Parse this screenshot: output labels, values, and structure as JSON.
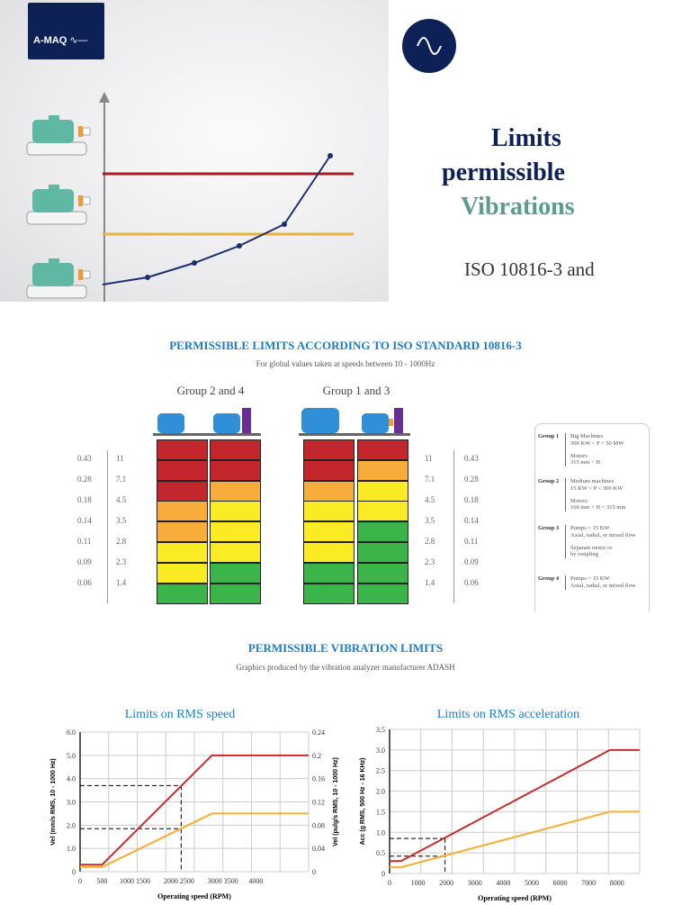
{
  "brand": {
    "logo_text": "A-MAQ",
    "icon": "sine-wave-icon",
    "navy": "#0e2157"
  },
  "title": {
    "line1": "Limits",
    "line2": "permissible",
    "line3": "Vibrations",
    "line4": "ISO 10816-3 and"
  },
  "iso_section": {
    "title": "PERMISSIBLE LIMITS ACCORDING TO ISO STANDARD 10816-3",
    "subtitle": "For global values taken at speeds between 10 - 1000Hz",
    "group_a": "Group 2 and 4",
    "group_b": "Group 1 and 3",
    "scale_ins": [
      "0.43",
      "0.28",
      "0.18",
      "0.14",
      "0.11",
      "0.09",
      "0.06"
    ],
    "scale_mm": [
      "11",
      "7.1",
      "4.5",
      "3.5",
      "2.8",
      "2.3",
      "1.4"
    ],
    "colors": {
      "R": "#c4262e",
      "O": "#f8ac3c",
      "Y": "#fbeb24",
      "G": "#3bb54a"
    },
    "columns": [
      [
        "R",
        "R",
        "R",
        "O",
        "O",
        "Y",
        "Y",
        "G"
      ],
      [
        "R",
        "R",
        "O",
        "Y",
        "Y",
        "Y",
        "G",
        "G"
      ],
      [
        "R",
        "R",
        "O",
        "Y",
        "Y",
        "Y",
        "G",
        "G"
      ],
      [
        "R",
        "O",
        "Y",
        "Y",
        "G",
        "G",
        "G",
        "G"
      ]
    ],
    "legend": [
      {
        "group": "Group 1",
        "lines": [
          "Big Machines",
          "300 KW < P < 50 MW",
          "",
          "Motors",
          "315 mm < H"
        ]
      },
      {
        "group": "Group 2",
        "lines": [
          "Medium machines",
          "15 KW < P < 300 KW",
          "",
          "Motors",
          "160 mm < H < 315 mm"
        ]
      },
      {
        "group": "Group 3",
        "lines": [
          "Pumps > 15 KW",
          "Axial, radial, or mixed flow",
          "",
          "Separate motor or",
          "by coupling"
        ]
      },
      {
        "group": "Group 4",
        "lines": [
          "Pumps > 15 KW",
          "Axial, radial, or mixed flow"
        ]
      }
    ]
  },
  "limits_section": {
    "title": "PERMISSIBLE VIBRATION LIMITS",
    "subtitle": "Graphics produced by the vibration analyzer manufacturer ADASH"
  },
  "chart_data": [
    {
      "type": "line",
      "title": "Limits on RMS speed",
      "xlabel": "Operating speed (RPM)",
      "ylabel": "Vel (mm/s RMS, 10 - 1000 Hz)",
      "y2label": "Vel (pulg/s RMS, 10 - 1000 Hz)",
      "xlim": [
        0,
        5200
      ],
      "ylim": [
        0,
        6
      ],
      "y2lim": [
        0,
        0.24
      ],
      "grid": true,
      "xticks": [
        {
          "v": 0,
          "t": "0"
        },
        {
          "v": 500,
          "t": "500"
        },
        {
          "v": 1250,
          "t": "1000 1500"
        },
        {
          "v": 2250,
          "t": "2000 2500"
        },
        {
          "v": 3250,
          "t": "3000 3500"
        },
        {
          "v": 4000,
          "t": "4000"
        }
      ],
      "yticks": [
        "0",
        "1.0",
        "2.0",
        "3.0",
        "4.0",
        "5.0",
        "6.0"
      ],
      "y2ticks": [
        "0",
        "0.04",
        "0.08",
        "0.12",
        "0.16",
        "0.2",
        "0.24"
      ],
      "series": [
        {
          "color": "#c62b30",
          "points": [
            [
              0,
              0.3
            ],
            [
              500,
              0.3
            ],
            [
              3000,
              5.0
            ],
            [
              5200,
              5.0
            ]
          ]
        },
        {
          "color": "#f9ad32",
          "points": [
            [
              0,
              0.2
            ],
            [
              500,
              0.2
            ],
            [
              3000,
              2.5
            ],
            [
              5200,
              2.5
            ]
          ]
        }
      ],
      "marker": {
        "x": 2300,
        "y": [
          3.7,
          1.85
        ]
      }
    },
    {
      "type": "line",
      "title": "Limits on RMS acceleration",
      "xlabel": "Operating speed (RPM)",
      "ylabel": "Acc (g RMS, 500 Hz - 16 KHz)",
      "xlim": [
        0,
        8800
      ],
      "ylim": [
        0,
        3.5
      ],
      "grid": true,
      "xticks": [
        {
          "v": 0,
          "t": "0"
        },
        {
          "v": 1000,
          "t": "1000"
        },
        {
          "v": 2000,
          "t": "2000"
        },
        {
          "v": 3000,
          "t": "3000"
        },
        {
          "v": 4000,
          "t": "4000"
        },
        {
          "v": 5000,
          "t": "5000"
        },
        {
          "v": 6000,
          "t": "6000"
        },
        {
          "v": 7000,
          "t": "7000"
        },
        {
          "v": 8000,
          "t": "8000"
        }
      ],
      "yticks": [
        "0",
        "0.5",
        "1.0",
        "1.5",
        "2.0",
        "2.5",
        "3.0",
        "3.5"
      ],
      "series": [
        {
          "color": "#c62b30",
          "points": [
            [
              0,
              0.3
            ],
            [
              400,
              0.3
            ],
            [
              7750,
              3.0
            ],
            [
              8800,
              3.0
            ]
          ]
        },
        {
          "color": "#f9ad32",
          "points": [
            [
              0,
              0.15
            ],
            [
              400,
              0.15
            ],
            [
              7750,
              1.5
            ],
            [
              8800,
              1.5
            ]
          ]
        }
      ],
      "marker": {
        "x": 1950,
        "y": [
          0.85,
          0.42
        ]
      }
    }
  ]
}
